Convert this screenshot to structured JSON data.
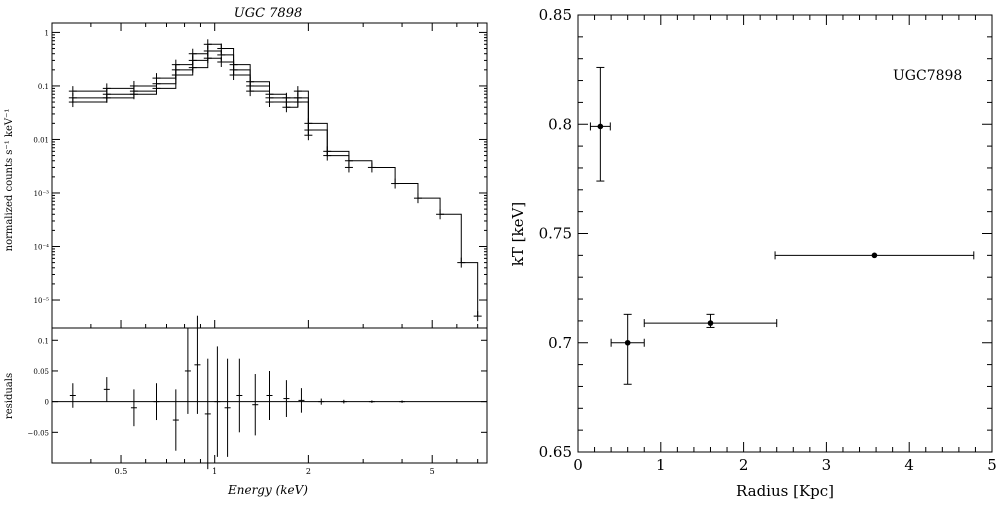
{
  "chart_data": [
    {
      "type": "line",
      "title": "UGC 7898",
      "xlabel": "Energy (keV)",
      "ylabel": "normalized counts s⁻¹ keV⁻¹",
      "log_x": true,
      "log_y": true,
      "xlim": [
        0.3,
        7.5
      ],
      "ylim": [
        3e-06,
        1.5
      ],
      "x_ticks": [
        "0.5",
        "1",
        "2",
        "5"
      ],
      "y_ticks": [
        "1",
        "0.1",
        "0.01",
        "10⁻³",
        "10⁻⁴",
        "10⁻⁵"
      ],
      "series": [
        {
          "values_x": [
            0.35,
            0.45,
            0.55,
            0.65,
            0.75,
            0.85,
            0.95,
            1.05,
            1.15,
            1.3,
            1.5,
            1.7,
            1.85,
            2.0,
            2.3,
            2.7,
            3.2,
            3.8,
            4.5,
            5.3,
            6.2,
            7.0
          ],
          "values_y": [
            0.08,
            0.09,
            0.1,
            0.14,
            0.25,
            0.4,
            0.6,
            0.5,
            0.25,
            0.12,
            0.07,
            0.06,
            0.08,
            0.02,
            0.006,
            0.004,
            0.003,
            0.0015,
            0.0008,
            0.0004,
            5e-05,
            5e-06
          ]
        },
        {
          "values_x": [
            0.35,
            0.45,
            0.55,
            0.65,
            0.75,
            0.85,
            0.95,
            1.05,
            1.15,
            1.3,
            1.5,
            1.7,
            1.85,
            2.0,
            2.3,
            2.7
          ],
          "values_y": [
            0.06,
            0.07,
            0.08,
            0.11,
            0.2,
            0.3,
            0.45,
            0.38,
            0.2,
            0.1,
            0.06,
            0.05,
            0.06,
            0.015,
            0.005,
            0.003
          ]
        },
        {
          "values_x": [
            0.35,
            0.45,
            0.55,
            0.65,
            0.75,
            0.85,
            0.95,
            1.05,
            1.15,
            1.3,
            1.5,
            1.7,
            1.85,
            2.0
          ],
          "values_y": [
            0.05,
            0.06,
            0.07,
            0.09,
            0.16,
            0.22,
            0.33,
            0.28,
            0.16,
            0.08,
            0.05,
            0.04,
            0.05,
            0.012
          ]
        }
      ],
      "residuals": {
        "ylabel": "residuals",
        "ylim": [
          -0.1,
          0.12
        ],
        "y_ticks": [
          "0.1",
          "0.05",
          "0",
          "−0.05"
        ],
        "x": [
          0.35,
          0.45,
          0.55,
          0.65,
          0.75,
          0.82,
          0.88,
          0.95,
          1.02,
          1.1,
          1.2,
          1.35,
          1.5,
          1.7,
          1.9,
          2.2,
          2.6,
          3.2,
          4.0
        ],
        "y": [
          0.01,
          0.02,
          -0.01,
          0.0,
          -0.03,
          0.05,
          0.06,
          -0.02,
          0.0,
          -0.01,
          0.01,
          -0.005,
          0.01,
          0.005,
          0.002,
          0.0,
          0.0,
          0.0,
          0.0
        ],
        "err": [
          0.02,
          0.02,
          0.03,
          0.03,
          0.05,
          0.07,
          0.08,
          0.09,
          0.09,
          0.08,
          0.06,
          0.05,
          0.04,
          0.03,
          0.02,
          0.005,
          0.003,
          0.002,
          0.002
        ]
      }
    },
    {
      "type": "scatter",
      "title": "UGC7898",
      "xlabel": "Radius [Kpc]",
      "ylabel": "kT [keV]",
      "xlim": [
        0,
        5
      ],
      "ylim": [
        0.65,
        0.85
      ],
      "x_ticks": [
        "0",
        "1",
        "2",
        "3",
        "4",
        "5"
      ],
      "y_ticks": [
        "0.65",
        "0.7",
        "0.75",
        "0.8",
        "0.85"
      ],
      "points": [
        {
          "x": 0.27,
          "y": 0.799,
          "xerr": [
            0.12,
            0.12
          ],
          "yerr": [
            0.025,
            0.027
          ]
        },
        {
          "x": 0.6,
          "y": 0.7,
          "xerr": [
            0.2,
            0.2
          ],
          "yerr": [
            0.019,
            0.013
          ]
        },
        {
          "x": 1.6,
          "y": 0.709,
          "xerr": [
            0.8,
            0.8
          ],
          "yerr": [
            0.002,
            0.004
          ]
        },
        {
          "x": 3.58,
          "y": 0.74,
          "xerr": [
            1.2,
            1.2
          ],
          "yerr": [
            0.0,
            0.0
          ]
        }
      ]
    }
  ]
}
